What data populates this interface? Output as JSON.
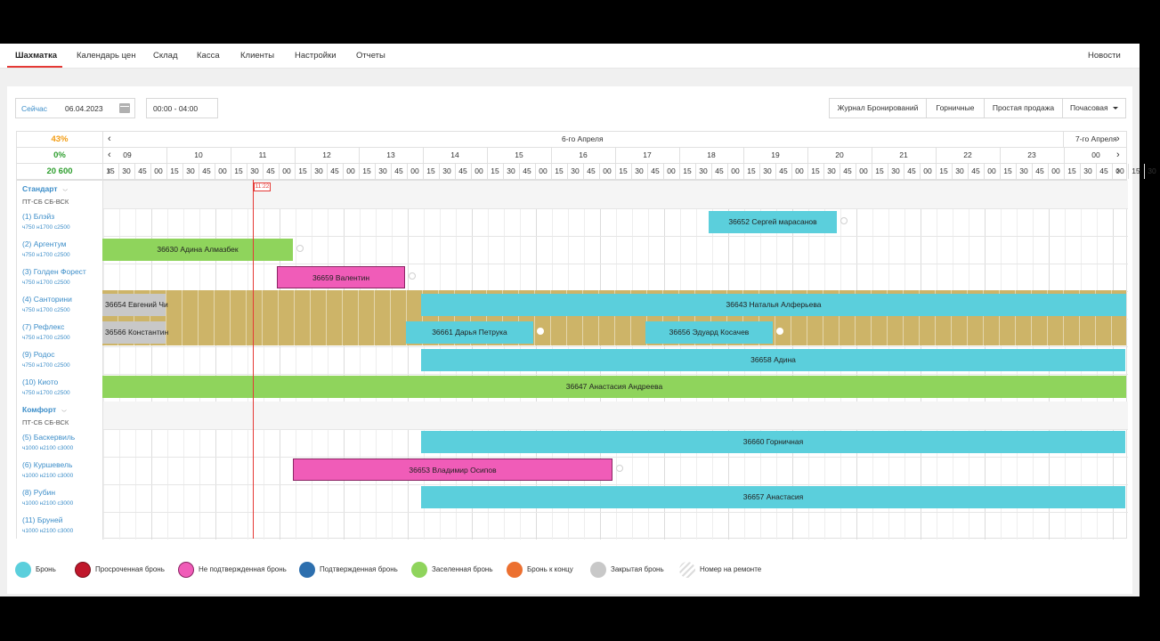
{
  "nav": {
    "items": [
      "Шахматка",
      "Календарь цен",
      "Склад",
      "Касса",
      "Клиенты",
      "Настройки",
      "Отчеты"
    ],
    "news": "Новости"
  },
  "toolbar": {
    "now_label": "Сейчас",
    "date": "06.04.2023",
    "time_range": "00:00 - 04:00",
    "buttons": [
      "Журнал Бронирований",
      "Горничные",
      "Простая продажа"
    ],
    "mode": "Почасовая"
  },
  "header": {
    "occupancy": "43%",
    "occupancy_color": "#f39c12",
    "percent2": "0%",
    "percent2_color": "#2e9e2e",
    "revenue": "20 600",
    "revenue_color": "#2e9e2e",
    "day_label": "6-го Апреля",
    "next_day_label": "7-го Апреля",
    "hours": [
      "09",
      "10",
      "11",
      "12",
      "13",
      "14",
      "15",
      "16",
      "17",
      "18",
      "19",
      "20",
      "21",
      "22",
      "23",
      "00"
    ],
    "minute_ticks": [
      "15",
      "30",
      "45",
      "00",
      "15",
      "30",
      "45",
      "00",
      "15",
      "30",
      "45",
      "00",
      "15",
      "30",
      "45",
      "00",
      "15",
      "30",
      "45",
      "00",
      "15",
      "30",
      "45",
      "00",
      "15",
      "30",
      "45",
      "00",
      "15",
      "30",
      "45",
      "00",
      "15",
      "30",
      "45",
      "00",
      "15",
      "30",
      "45",
      "00",
      "15",
      "30",
      "45",
      "00",
      "15",
      "30",
      "45",
      "00",
      "15",
      "30",
      "45",
      "00",
      "15",
      "30",
      "45",
      "00",
      "15",
      "30",
      "45",
      "00",
      "15",
      "30",
      "45",
      "00",
      "15",
      "30"
    ]
  },
  "now_time": "11:22",
  "rows": [
    {
      "type": "group",
      "name": "Стандарт",
      "sub": "ПТ-СБ  СБ-ВСК"
    },
    {
      "type": "room",
      "name": "(1) Блэйз",
      "prices": "ч750 н1700 с2500"
    },
    {
      "type": "room",
      "name": "(2) Аргентум",
      "prices": "ч750 н1700 с2500"
    },
    {
      "type": "room",
      "name": "(3) Голден Форест",
      "prices": "ч750 н1700 с2500"
    },
    {
      "type": "room",
      "name": "(4) Санторини",
      "prices": "ч750 н1700 с2500"
    },
    {
      "type": "room",
      "name": "(7) Рефлекс",
      "prices": "ч750 н1700 с2500"
    },
    {
      "type": "room",
      "name": "(9) Родос",
      "prices": "ч750 н1700 с2500"
    },
    {
      "type": "room",
      "name": "(10) Киото",
      "prices": "ч750 н1700 с2500"
    },
    {
      "type": "group",
      "name": "Комфорт",
      "sub": "ПТ-СБ  СБ-ВСК"
    },
    {
      "type": "room",
      "name": "(5) Баскервиль",
      "prices": "ч1000 н2100 с3000"
    },
    {
      "type": "room",
      "name": "(6) Куршевель",
      "prices": "ч1000 н2100 с3000"
    },
    {
      "type": "room",
      "name": "(8) Рубин",
      "prices": "ч1000 н2100 с3000"
    },
    {
      "type": "room",
      "name": "(11) Бруней",
      "prices": "ч1000 н2100 с3000"
    }
  ],
  "bookings": [
    {
      "label": "36652 Сергей марасанов",
      "status": "Бронь"
    },
    {
      "label": "36630 Адина Алмазбек",
      "status": "Заселенная бронь"
    },
    {
      "label": "36659 Валентин",
      "status": "Не подтвержденная бронь"
    },
    {
      "label": "36654 Евгений Чи",
      "status": "Закрытая бронь"
    },
    {
      "label": "36643 Наталья Алферьева",
      "status": "Бронь"
    },
    {
      "label": "36566 Константин",
      "status": "Закрытая бронь"
    },
    {
      "label": "36661 Дарья Петрука",
      "status": "Бронь"
    },
    {
      "label": "36656 Эдуард Косачев",
      "status": "Бронь"
    },
    {
      "label": "36658 Адина",
      "status": "Бронь"
    },
    {
      "label": "36647 Анастасия Андреева",
      "status": "Заселенная бронь"
    },
    {
      "label": "36660 Горничная",
      "status": "Бронь"
    },
    {
      "label": "36653 Владимир Осипов",
      "status": "Не подтвержденная бронь"
    },
    {
      "label": "36657 Анастасия",
      "status": "Бронь"
    }
  ],
  "legend": [
    {
      "label": "Бронь",
      "color": "#5bcfdc"
    },
    {
      "label": "Просроченная бронь",
      "color": "#c0172b"
    },
    {
      "label": "Не подтвержденная бронь",
      "color": "#f05cb8"
    },
    {
      "label": "Подтвержденная бронь",
      "color": "#2d6fae"
    },
    {
      "label": "Заселенная бронь",
      "color": "#8fd45c"
    },
    {
      "label": "Бронь к концу",
      "color": "#ec7030"
    },
    {
      "label": "Закрытая бронь",
      "color": "#c8c8c8"
    },
    {
      "label": "Номер на ремонте",
      "color": "#e8e8e8"
    }
  ]
}
